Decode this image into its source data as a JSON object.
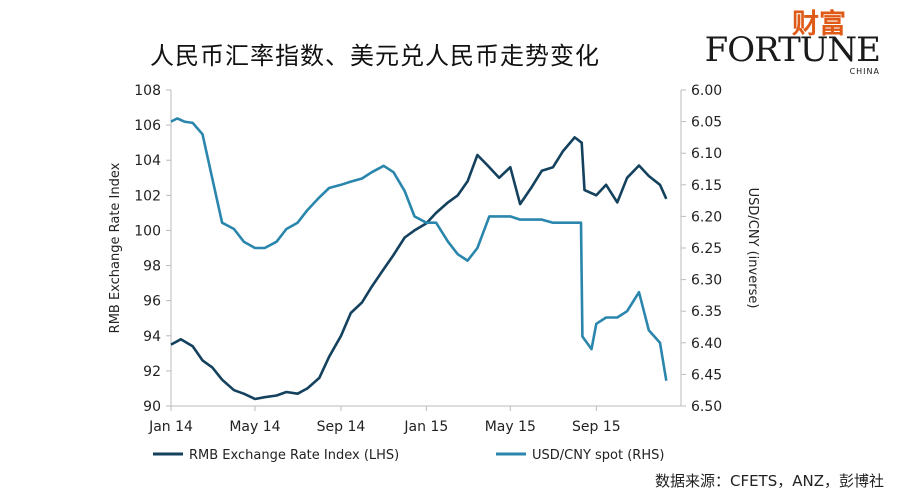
{
  "title": "人民币汇率指数、美元兑人民币走势变化",
  "logo": {
    "cn": "财富",
    "en": "FORTUNE",
    "sub": "CHINA"
  },
  "source": "数据来源：CFETS，ANZ，彭博社",
  "colors": {
    "rmb_index": "#14425e",
    "usd_cny": "#2a86ad",
    "axis": "#bbbbbb"
  },
  "chart_data": {
    "type": "line",
    "x_ticks": [
      "Jan 14",
      "May 14",
      "Sep 14",
      "Jan 15",
      "May 15",
      "Sep 15"
    ],
    "xlim": [
      "2014-01-01",
      "2015-12-31"
    ],
    "left_axis": {
      "label": "RMB Exchange Rate Index",
      "ylim": [
        90,
        108
      ],
      "ticks": [
        "90",
        "92",
        "94",
        "96",
        "98",
        "100",
        "102",
        "104",
        "106",
        "108"
      ]
    },
    "right_axis": {
      "label": "USD/CNY (inverse)",
      "ylim": [
        6.5,
        6.0
      ],
      "inverted": true,
      "ticks": [
        "6.00",
        "6.05",
        "6.10",
        "6.15",
        "6.20",
        "6.25",
        "6.30",
        "6.35",
        "6.40",
        "6.45",
        "6.50"
      ]
    },
    "series": [
      {
        "name": "RMB Exchange Rate Index (LHS)",
        "axis": "left",
        "color": "#14425e",
        "points": [
          [
            "2014-01-01",
            93.5
          ],
          [
            "2014-01-15",
            93.8
          ],
          [
            "2014-02-01",
            93.4
          ],
          [
            "2014-02-15",
            92.6
          ],
          [
            "2014-03-01",
            92.2
          ],
          [
            "2014-03-15",
            91.5
          ],
          [
            "2014-04-01",
            90.9
          ],
          [
            "2014-04-15",
            90.7
          ],
          [
            "2014-05-01",
            90.4
          ],
          [
            "2014-05-15",
            90.5
          ],
          [
            "2014-06-01",
            90.6
          ],
          [
            "2014-06-15",
            90.8
          ],
          [
            "2014-07-01",
            90.7
          ],
          [
            "2014-07-15",
            91.0
          ],
          [
            "2014-08-01",
            91.6
          ],
          [
            "2014-08-15",
            92.8
          ],
          [
            "2014-09-01",
            94.0
          ],
          [
            "2014-09-15",
            95.3
          ],
          [
            "2014-10-01",
            95.9
          ],
          [
            "2014-10-15",
            96.8
          ],
          [
            "2014-11-01",
            97.8
          ],
          [
            "2014-11-15",
            98.6
          ],
          [
            "2014-12-01",
            99.6
          ],
          [
            "2014-12-15",
            100.0
          ],
          [
            "2015-01-01",
            100.4
          ],
          [
            "2015-01-15",
            101.0
          ],
          [
            "2015-02-01",
            101.6
          ],
          [
            "2015-02-15",
            102.0
          ],
          [
            "2015-03-01",
            102.8
          ],
          [
            "2015-03-15",
            104.3
          ],
          [
            "2015-04-01",
            103.6
          ],
          [
            "2015-04-15",
            103.0
          ],
          [
            "2015-05-01",
            103.6
          ],
          [
            "2015-05-15",
            101.5
          ],
          [
            "2015-06-01",
            102.5
          ],
          [
            "2015-06-15",
            103.4
          ],
          [
            "2015-07-01",
            103.6
          ],
          [
            "2015-07-15",
            104.5
          ],
          [
            "2015-08-01",
            105.3
          ],
          [
            "2015-08-11",
            105.0
          ],
          [
            "2015-08-15",
            102.3
          ],
          [
            "2015-09-01",
            102.0
          ],
          [
            "2015-09-15",
            102.6
          ],
          [
            "2015-10-01",
            101.6
          ],
          [
            "2015-10-15",
            103.0
          ],
          [
            "2015-11-01",
            103.7
          ],
          [
            "2015-11-15",
            103.1
          ],
          [
            "2015-12-01",
            102.6
          ],
          [
            "2015-12-10",
            101.8
          ]
        ]
      },
      {
        "name": "USD/CNY spot (RHS)",
        "axis": "right",
        "color": "#2a86ad",
        "points": [
          [
            "2014-01-01",
            6.05
          ],
          [
            "2014-01-10",
            6.045
          ],
          [
            "2014-01-20",
            6.05
          ],
          [
            "2014-02-01",
            6.052
          ],
          [
            "2014-02-15",
            6.07
          ],
          [
            "2014-03-01",
            6.14
          ],
          [
            "2014-03-15",
            6.21
          ],
          [
            "2014-04-01",
            6.22
          ],
          [
            "2014-04-15",
            6.24
          ],
          [
            "2014-05-01",
            6.25
          ],
          [
            "2014-05-15",
            6.25
          ],
          [
            "2014-06-01",
            6.24
          ],
          [
            "2014-06-15",
            6.22
          ],
          [
            "2014-07-01",
            6.21
          ],
          [
            "2014-07-15",
            6.19
          ],
          [
            "2014-08-01",
            6.17
          ],
          [
            "2014-08-15",
            6.155
          ],
          [
            "2014-09-01",
            6.15
          ],
          [
            "2014-09-15",
            6.145
          ],
          [
            "2014-10-01",
            6.14
          ],
          [
            "2014-10-15",
            6.13
          ],
          [
            "2014-11-01",
            6.12
          ],
          [
            "2014-11-15",
            6.13
          ],
          [
            "2014-12-01",
            6.16
          ],
          [
            "2014-12-15",
            6.2
          ],
          [
            "2015-01-01",
            6.21
          ],
          [
            "2015-01-15",
            6.21
          ],
          [
            "2015-02-01",
            6.24
          ],
          [
            "2015-02-15",
            6.26
          ],
          [
            "2015-03-01",
            6.27
          ],
          [
            "2015-03-15",
            6.25
          ],
          [
            "2015-04-01",
            6.2
          ],
          [
            "2015-04-15",
            6.2
          ],
          [
            "2015-05-01",
            6.2
          ],
          [
            "2015-05-15",
            6.205
          ],
          [
            "2015-06-01",
            6.205
          ],
          [
            "2015-06-15",
            6.205
          ],
          [
            "2015-07-01",
            6.21
          ],
          [
            "2015-07-15",
            6.21
          ],
          [
            "2015-08-01",
            6.21
          ],
          [
            "2015-08-10",
            6.21
          ],
          [
            "2015-08-12",
            6.39
          ],
          [
            "2015-08-25",
            6.41
          ],
          [
            "2015-09-01",
            6.37
          ],
          [
            "2015-09-15",
            6.36
          ],
          [
            "2015-10-01",
            6.36
          ],
          [
            "2015-10-15",
            6.35
          ],
          [
            "2015-11-01",
            6.32
          ],
          [
            "2015-11-15",
            6.38
          ],
          [
            "2015-12-01",
            6.4
          ],
          [
            "2015-12-10",
            6.46
          ]
        ]
      }
    ],
    "legend": {
      "position": "bottom",
      "items": [
        "RMB Exchange Rate Index (LHS)",
        "USD/CNY spot (RHS)"
      ]
    },
    "grid": false
  }
}
